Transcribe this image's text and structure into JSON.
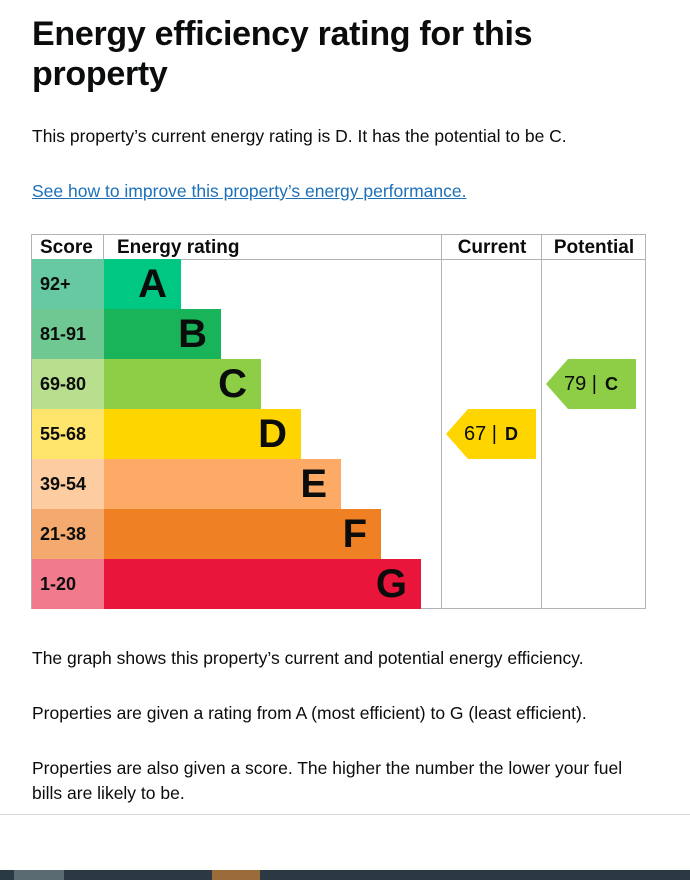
{
  "page": {
    "title": "Energy efficiency rating for this property",
    "intro": "This property’s current energy rating is D. It has the potential to be C.",
    "link_text": "See how to improve this property’s energy performance.",
    "notes": [
      "The graph shows this property’s current and potential energy efficiency.",
      "Properties are given a rating from A (most efficient) to G (least efficient).",
      "Properties are also given a score. The higher the number the lower your fuel bills are likely to be."
    ]
  },
  "chart_data": {
    "type": "table",
    "headers": {
      "score": "Score",
      "rating": "Energy rating",
      "current": "Current",
      "potential": "Potential"
    },
    "bands": [
      {
        "score": "92+",
        "letter": "A",
        "color": "#00c781",
        "score_color": "#67c9a1"
      },
      {
        "score": "81-91",
        "letter": "B",
        "color": "#19b459",
        "score_color": "#6fc791"
      },
      {
        "score": "69-80",
        "letter": "C",
        "color": "#8dce46",
        "score_color": "#b7df8d"
      },
      {
        "score": "55-68",
        "letter": "D",
        "color": "#ffd500",
        "score_color": "#ffe56c"
      },
      {
        "score": "39-54",
        "letter": "E",
        "color": "#fcaa65",
        "score_color": "#fdcca1"
      },
      {
        "score": "21-38",
        "letter": "F",
        "color": "#ef8023",
        "score_color": "#f4aa6e"
      },
      {
        "score": "1-20",
        "letter": "G",
        "color": "#e9153b",
        "score_color": "#f27a8d"
      }
    ],
    "current": {
      "value": 67,
      "separator": "|",
      "letter": "D",
      "color": "#ffd500"
    },
    "potential": {
      "value": 79,
      "separator": "|",
      "letter": "C",
      "color": "#8dce46"
    }
  }
}
